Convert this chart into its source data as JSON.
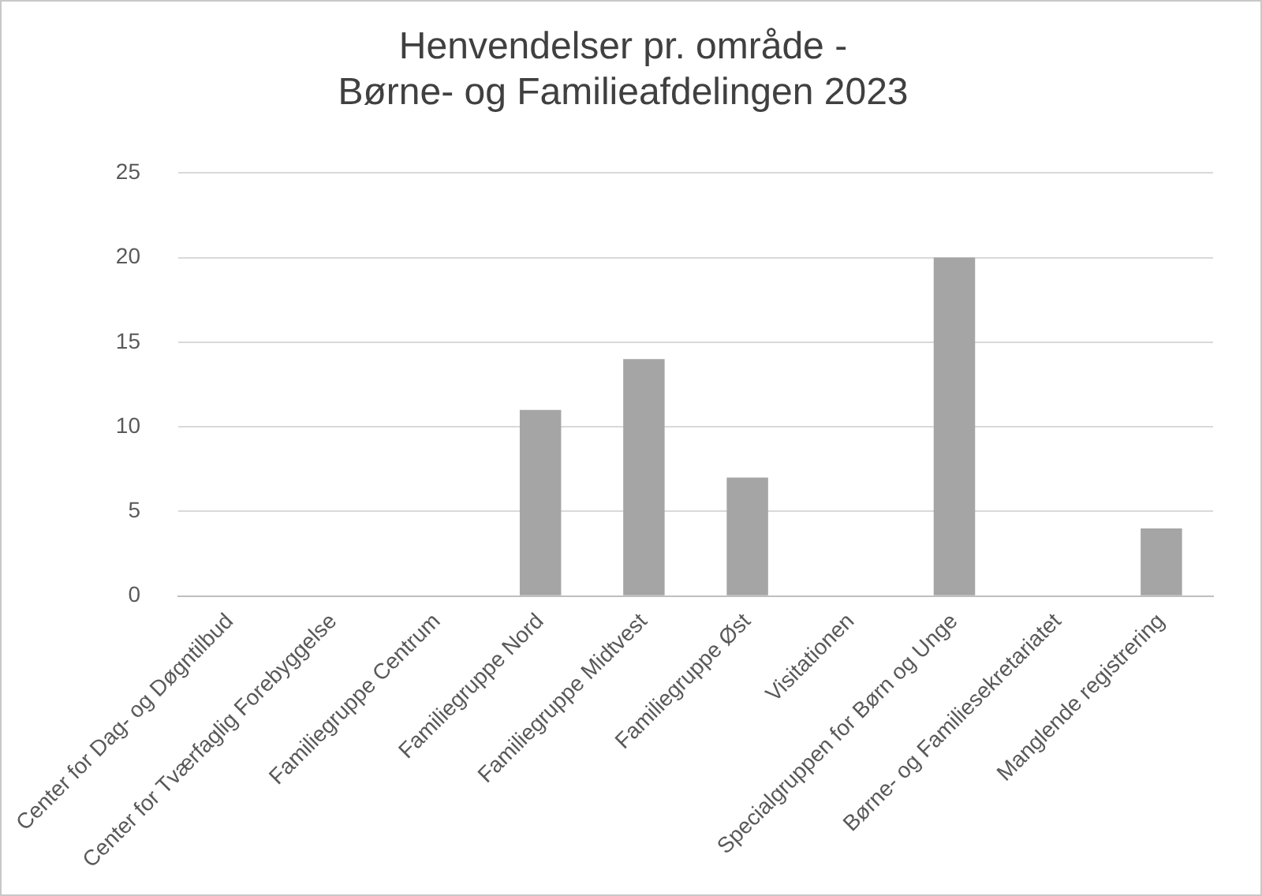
{
  "chart_data": {
    "type": "bar",
    "title": "Henvendelser pr. område -\nBørne- og Familieafdelingen 2023",
    "categories": [
      "Center for Dag- og Døgntilbud",
      "Center for Tværfaglig Forebyggelse",
      "Familiegruppe Centrum",
      "Familiegruppe Nord",
      "Familiegruppe Midtvest",
      "Familiegruppe Øst",
      "Visitationen",
      "Specialgruppen for Børn og Unge",
      "Børne- og Familiesekretariatet",
      "Manglende registrering"
    ],
    "values": [
      0,
      0,
      0,
      11,
      14,
      7,
      0,
      20,
      0,
      4
    ],
    "color": "#a5a5a5",
    "ylim": [
      0,
      25
    ],
    "yticks": [
      0,
      5,
      10,
      15,
      20,
      25
    ],
    "grid": "y",
    "legend": false
  }
}
